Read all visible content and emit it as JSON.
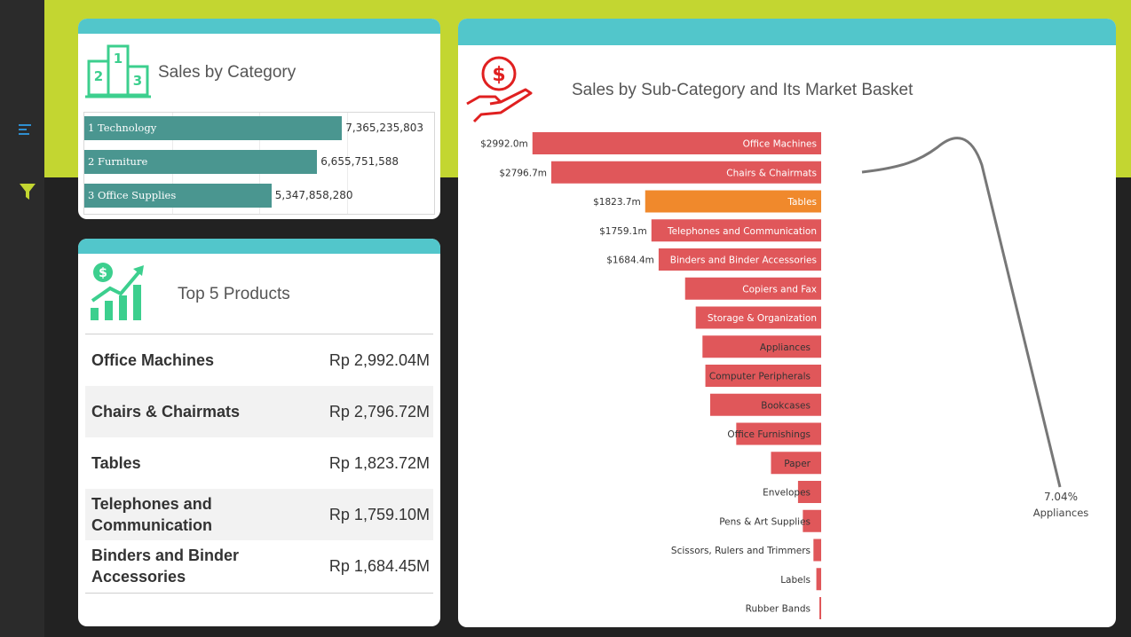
{
  "colors": {
    "band": "#c3d631",
    "teal": "#52c6cb",
    "bar_category": "#4a9690",
    "bar_default": "#e0575a",
    "bar_highlight": "#f0892c",
    "icon_green": "#3ccf8e",
    "icon_red": "#e02020"
  },
  "sidebar": {
    "menu_icon": "menu-lines-icon",
    "filter_icon": "funnel-icon"
  },
  "category_card": {
    "title": "Sales by Category",
    "icon": "podium-icon"
  },
  "products_card": {
    "title": "Top 5 Products",
    "icon": "dollar-growth-icon",
    "items": [
      {
        "name": "Office Machines",
        "value": "Rp 2,992.04M"
      },
      {
        "name": "Chairs & Chairmats",
        "value": "Rp 2,796.72M"
      },
      {
        "name": "Tables",
        "value": "Rp 1,823.72M"
      },
      {
        "name": "Telephones and Communication",
        "value": "Rp 1,759.10M"
      },
      {
        "name": "Binders and Binder Accessories",
        "value": "Rp 1,684.45M"
      }
    ]
  },
  "subcat_card": {
    "title": "Sales by Sub-Category and Its Market Basket",
    "icon": "hand-money-icon"
  },
  "chart_data": [
    {
      "type": "bar",
      "orientation": "horizontal",
      "title": "Sales by Category",
      "categories": [
        "1 Technology",
        "2 Furniture",
        "3 Office Supplies"
      ],
      "values": [
        7365235803,
        6655751588,
        5347858280
      ],
      "value_labels": [
        "7,365,235,803",
        "6,655,751,588",
        "5,347,858,280"
      ],
      "xlim": [
        0,
        10000000000
      ],
      "grid": true
    },
    {
      "type": "bar",
      "orientation": "horizontal",
      "title": "Sales by Sub-Category and Its Market Basket",
      "categories": [
        "Office Machines",
        "Chairs & Chairmats",
        "Tables",
        "Telephones and Communication",
        "Binders and Binder Accessories",
        "Copiers and Fax",
        "Storage & Organization",
        "Appliances",
        "Computer Peripherals",
        "Bookcases",
        "Office Furnishings",
        "Paper",
        "Envelopes",
        "Pens & Art Supplies",
        "Scissors, Rulers and Trimmers",
        "Labels",
        "Rubber Bands"
      ],
      "values": [
        2992.0,
        2796.7,
        1823.7,
        1759.1,
        1684.4,
        1410,
        1300,
        1230,
        1200,
        1150,
        880,
        520,
        240,
        190,
        80,
        50,
        15
      ],
      "value_labels": [
        "$2992.0m",
        "$2796.7m",
        "$1823.7m",
        "$1759.1m",
        "$1684.4m",
        "",
        "",
        "",
        "",
        "",
        "",
        "",
        "",
        "",
        "",
        "",
        ""
      ],
      "highlight": "Tables",
      "xlim": [
        0,
        3100
      ],
      "annotation": {
        "value": "7.04%",
        "label": "Appliances"
      }
    }
  ]
}
